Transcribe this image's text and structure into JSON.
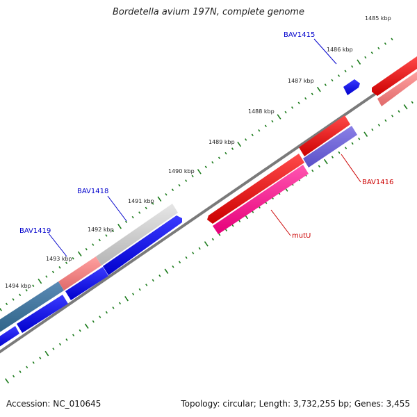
{
  "title": "Bordetella avium 197N, complete genome",
  "footer": {
    "accession": "Accession: NC_010645",
    "stats": "Topology: circular; Length: 3,732,255 bp; Genes: 3,455"
  },
  "kbp_labels": [
    "1485 kbp",
    "1486 kbp",
    "1487 kbp",
    "1488 kbp",
    "1489 kbp",
    "1490 kbp",
    "1491 kbp",
    "1492 kbp",
    "1493 kbp",
    "1494 kbp"
  ],
  "gene_labels": [
    {
      "name": "BAV1415",
      "color": "#0000cc"
    },
    {
      "name": "BAV1416",
      "color": "#cc0000"
    },
    {
      "name": "mutU",
      "color": "#cc0000"
    },
    {
      "name": "BAV1418",
      "color": "#0000cc"
    },
    {
      "name": "BAV1419",
      "color": "#0000cc"
    }
  ],
  "colors": {
    "forward_gene": "#ff0000",
    "reverse_gene": "#0000ff",
    "tick": "#1a7a1a",
    "backbone": "#808080"
  }
}
